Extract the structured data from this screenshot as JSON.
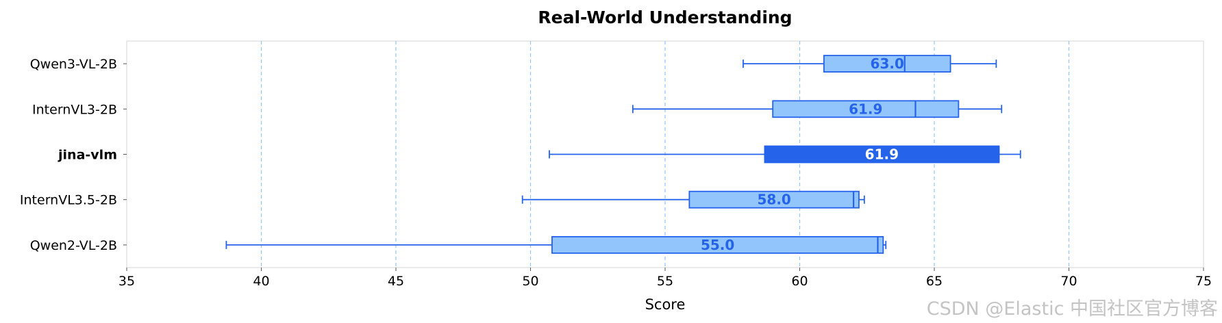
{
  "chart_data": {
    "type": "boxplot",
    "orientation": "horizontal",
    "title": "Real-World Understanding",
    "xlabel": "Score",
    "ylabel": "",
    "xlim": [
      35,
      75
    ],
    "x_ticks": [
      35,
      40,
      45,
      50,
      55,
      60,
      65,
      70,
      75
    ],
    "grid": "x-dashed",
    "colors": {
      "box_fill": "#93c5fd",
      "box_edge": "#2563eb",
      "highlight_fill": "#2563eb",
      "label": "#2563eb",
      "highlight_label": "#ffffff",
      "grid": "#93c5fd",
      "spine": "#dddddd"
    },
    "series": [
      {
        "name": "Qwen3-VL-2B",
        "whisker_low": 57.9,
        "q1": 60.9,
        "median": 63.9,
        "q3": 65.6,
        "whisker_high": 67.3,
        "label": "63.0",
        "highlight": false
      },
      {
        "name": "InternVL3-2B",
        "whisker_low": 53.8,
        "q1": 59.0,
        "median": 64.3,
        "q3": 65.9,
        "whisker_high": 67.5,
        "label": "61.9",
        "highlight": false
      },
      {
        "name": "jina-vlm",
        "whisker_low": 50.7,
        "q1": 58.7,
        "median": 67.4,
        "q3": 67.4,
        "whisker_high": 68.2,
        "label": "61.9",
        "highlight": true
      },
      {
        "name": "InternVL3.5-2B",
        "whisker_low": 49.7,
        "q1": 55.9,
        "median": 62.0,
        "q3": 62.2,
        "whisker_high": 62.4,
        "label": "58.0",
        "highlight": false
      },
      {
        "name": "Qwen2-VL-2B",
        "whisker_low": 38.7,
        "q1": 50.8,
        "median": 62.9,
        "q3": 63.1,
        "whisker_high": 63.2,
        "label": "55.0",
        "highlight": false
      }
    ]
  },
  "watermark": "CSDN @Elastic 中国社区官方博客"
}
